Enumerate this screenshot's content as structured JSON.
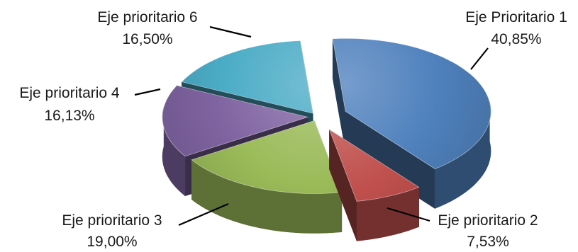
{
  "chart_data": {
    "type": "pie",
    "title": "",
    "style": "3d-exploded",
    "legend": "none",
    "categories": [
      "Eje Prioritario 1",
      "Eje prioritario 2",
      "Eje prioritario 3",
      "Eje prioritario 4",
      "Eje prioritario 6"
    ],
    "values": [
      40.85,
      7.53,
      19.0,
      16.13,
      16.5
    ],
    "value_labels": [
      "40,85%",
      "7,53%",
      "19,00%",
      "16,13%",
      "16,50%"
    ],
    "unit": "%",
    "colors": [
      "#4F81BD",
      "#C0504D",
      "#9BBB59",
      "#8064A2",
      "#4BACC6"
    ]
  }
}
